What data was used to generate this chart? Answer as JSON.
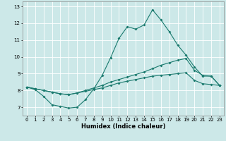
{
  "title": "",
  "xlabel": "Humidex (Indice chaleur)",
  "ylabel": "",
  "xlim": [
    -0.5,
    23.5
  ],
  "ylim": [
    6.5,
    13.3
  ],
  "xticks": [
    0,
    1,
    2,
    3,
    4,
    5,
    6,
    7,
    8,
    9,
    10,
    11,
    12,
    13,
    14,
    15,
    16,
    17,
    18,
    19,
    20,
    21,
    22,
    23
  ],
  "yticks": [
    7,
    8,
    9,
    10,
    11,
    12,
    13
  ],
  "bg_color": "#cce8e8",
  "line_color": "#1a7a6e",
  "grid_color": "#ffffff",
  "line1_x": [
    0,
    1,
    2,
    3,
    4,
    5,
    6,
    7,
    8,
    9,
    10,
    11,
    12,
    13,
    14,
    15,
    16,
    17,
    18,
    19,
    20,
    21,
    22,
    23
  ],
  "line1_y": [
    8.2,
    8.05,
    7.65,
    7.15,
    7.05,
    6.95,
    7.0,
    7.45,
    8.1,
    8.9,
    9.95,
    11.1,
    11.8,
    11.65,
    11.9,
    12.8,
    12.2,
    11.5,
    10.7,
    10.1,
    9.4,
    8.85,
    8.85,
    8.3
  ],
  "line2_x": [
    0,
    1,
    2,
    3,
    4,
    5,
    6,
    7,
    8,
    9,
    10,
    11,
    12,
    13,
    14,
    15,
    16,
    17,
    18,
    19,
    20,
    21,
    22,
    23
  ],
  "line2_y": [
    8.2,
    8.1,
    8.0,
    7.9,
    7.8,
    7.75,
    7.85,
    8.0,
    8.15,
    8.3,
    8.5,
    8.65,
    8.8,
    8.95,
    9.1,
    9.3,
    9.5,
    9.65,
    9.8,
    9.9,
    9.2,
    8.9,
    8.85,
    8.3
  ],
  "line3_x": [
    0,
    1,
    2,
    3,
    4,
    5,
    6,
    7,
    8,
    9,
    10,
    11,
    12,
    13,
    14,
    15,
    16,
    17,
    18,
    19,
    20,
    21,
    22,
    23
  ],
  "line3_y": [
    8.2,
    8.1,
    8.0,
    7.9,
    7.8,
    7.75,
    7.85,
    7.95,
    8.05,
    8.15,
    8.3,
    8.45,
    8.55,
    8.65,
    8.75,
    8.85,
    8.9,
    8.95,
    9.0,
    9.05,
    8.6,
    8.4,
    8.35,
    8.3
  ],
  "tick_fontsize": 5.0,
  "xlabel_fontsize": 6.0,
  "marker_size": 2.0,
  "linewidth": 0.8
}
